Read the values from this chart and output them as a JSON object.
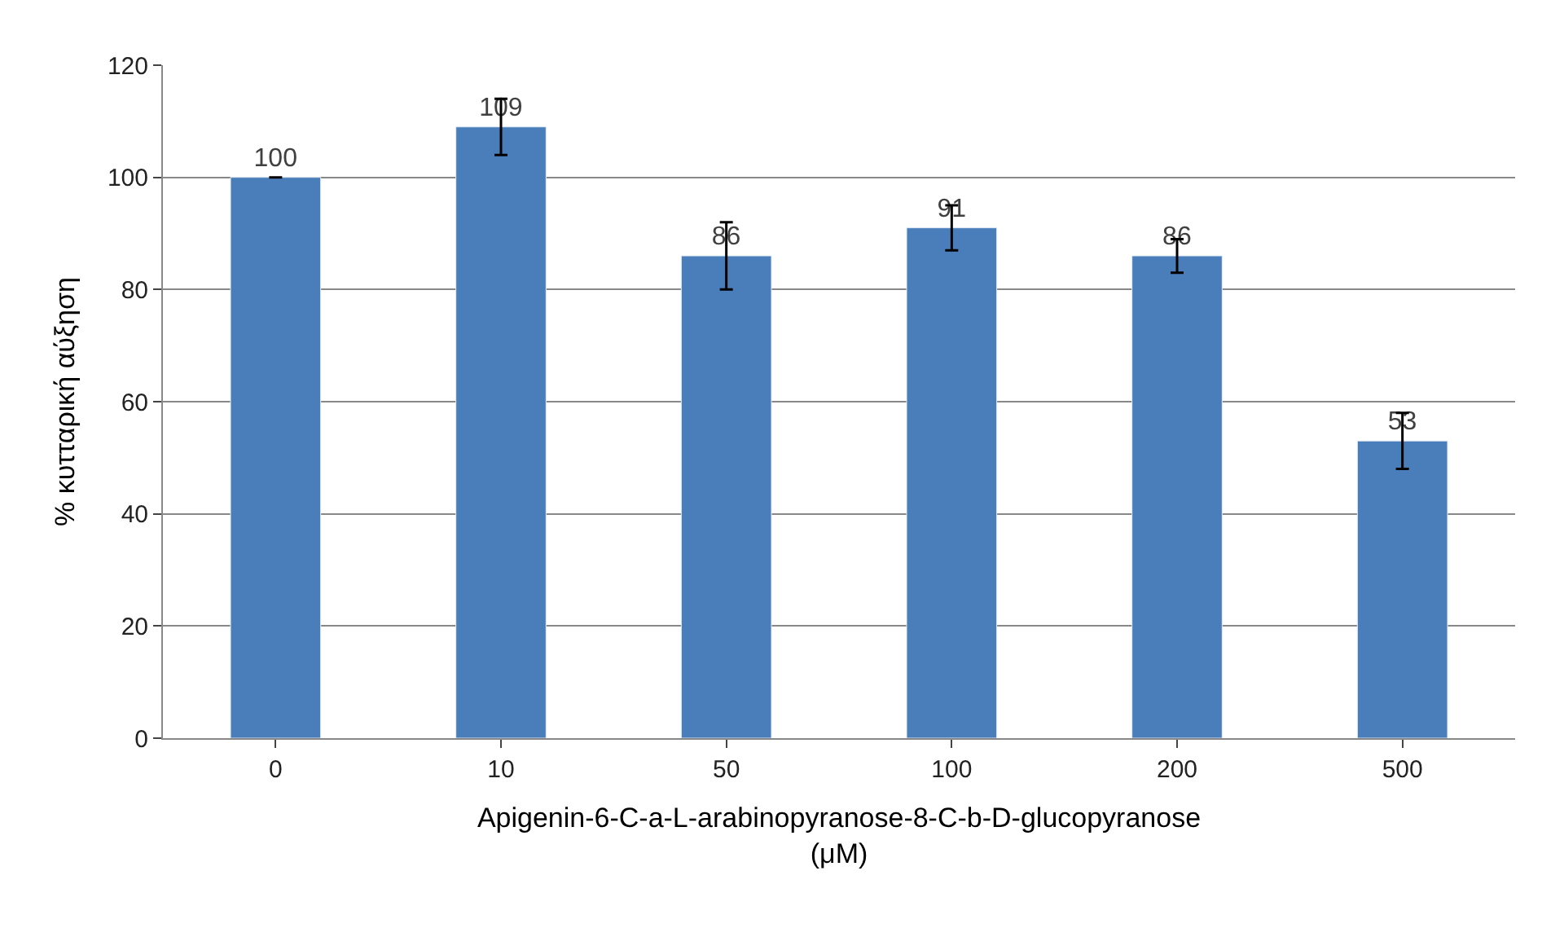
{
  "chart_data": {
    "type": "bar",
    "categories": [
      "0",
      "10",
      "50",
      "100",
      "200",
      "500"
    ],
    "values": [
      100,
      109,
      86,
      91,
      86,
      53
    ],
    "errors": [
      null,
      5,
      6,
      4,
      3,
      5
    ],
    "color": "#4a7ebb",
    "data_labels": true,
    "ylabel": "% κυτταρική αύξηση",
    "xlabel": "Apigenin-6-C-a-L-arabinopyranose-8-C-b-D-glucopyranose\n(μM)",
    "ylim": [
      0,
      120
    ],
    "yticks": [
      0,
      20,
      40,
      60,
      80,
      100,
      120
    ],
    "grid": "y",
    "legend": false
  }
}
